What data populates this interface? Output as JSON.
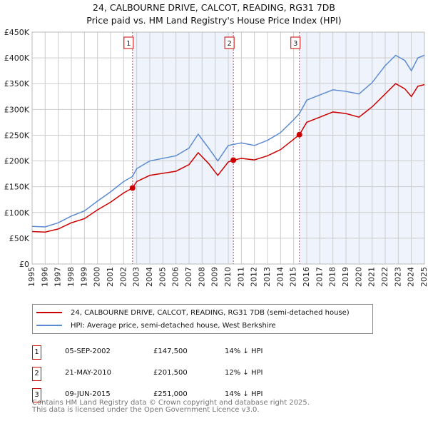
{
  "title": "24, CALBOURNE DRIVE, CALCOT, READING, RG31 7DB",
  "subtitle": "Price paid vs. HM Land Registry's House Price Index (HPI)",
  "chart_data": {
    "type": "line",
    "xlim": [
      1995,
      2025
    ],
    "ylim": [
      0,
      450000
    ],
    "yticks": [
      {
        "v": 0,
        "l": "£0"
      },
      {
        "v": 50000,
        "l": "£50K"
      },
      {
        "v": 100000,
        "l": "£100K"
      },
      {
        "v": 150000,
        "l": "£150K"
      },
      {
        "v": 200000,
        "l": "£200K"
      },
      {
        "v": 250000,
        "l": "£250K"
      },
      {
        "v": 300000,
        "l": "£300K"
      },
      {
        "v": 350000,
        "l": "£350K"
      },
      {
        "v": 400000,
        "l": "£400K"
      },
      {
        "v": 450000,
        "l": "£450K"
      }
    ],
    "xticks": [
      "1995",
      "1996",
      "1997",
      "1998",
      "1999",
      "2000",
      "2001",
      "2002",
      "2003",
      "2004",
      "2005",
      "2006",
      "2007",
      "2008",
      "2009",
      "2010",
      "2011",
      "2012",
      "2013",
      "2014",
      "2015",
      "2016",
      "2017",
      "2018",
      "2019",
      "2020",
      "2021",
      "2022",
      "2023",
      "2024",
      "2025"
    ],
    "series": [
      {
        "name": "24, CALBOURNE DRIVE, CALCOT, READING, RG31 7DB (semi-detached house)",
        "color": "#cc0000",
        "x": [
          1995,
          1996,
          1997,
          1998,
          1999,
          2000,
          2001,
          2002,
          2002.68,
          2003,
          2004,
          2005,
          2006,
          2007,
          2007.7,
          2008.5,
          2009.2,
          2010,
          2010.39,
          2011,
          2012,
          2013,
          2014,
          2015,
          2015.44,
          2016,
          2017,
          2018,
          2019,
          2020,
          2021,
          2022,
          2022.8,
          2023.5,
          2024,
          2024.5,
          2025
        ],
        "y": [
          63000,
          62000,
          68000,
          80000,
          88000,
          105000,
          120000,
          138000,
          147500,
          160000,
          172000,
          176000,
          180000,
          193000,
          216000,
          195000,
          172000,
          198000,
          201500,
          205000,
          202000,
          210000,
          222000,
          242000,
          251000,
          275000,
          285000,
          295000,
          292000,
          285000,
          305000,
          330000,
          350000,
          340000,
          325000,
          345000,
          348000
        ]
      },
      {
        "name": "HPI: Average price, semi-detached house, West Berkshire",
        "color": "#5b8bd0",
        "x": [
          1995,
          1996,
          1997,
          1998,
          1999,
          2000,
          2001,
          2002,
          2002.68,
          2003,
          2004,
          2005,
          2006,
          2007,
          2007.7,
          2008.5,
          2009.2,
          2010,
          2010.39,
          2011,
          2012,
          2013,
          2014,
          2015,
          2015.44,
          2016,
          2017,
          2018,
          2019,
          2020,
          2021,
          2022,
          2022.8,
          2023.5,
          2024,
          2024.5,
          2025
        ],
        "y": [
          73000,
          72000,
          80000,
          93000,
          103000,
          122000,
          140000,
          160000,
          170000,
          185000,
          200000,
          205000,
          210000,
          225000,
          252000,
          225000,
          200000,
          230000,
          232000,
          235000,
          230000,
          240000,
          255000,
          280000,
          292000,
          318000,
          328000,
          338000,
          335000,
          330000,
          352000,
          385000,
          405000,
          395000,
          375000,
          400000,
          405000
        ]
      }
    ],
    "sales": [
      {
        "label": "1",
        "x": 2002.68,
        "date": "05-SEP-2002",
        "price": 147500,
        "price_text": "£147,500",
        "hpi": "14% ↓ HPI"
      },
      {
        "label": "2",
        "x": 2010.39,
        "date": "21-MAY-2010",
        "price": 201500,
        "price_text": "£201,500",
        "hpi": "12% ↓ HPI"
      },
      {
        "label": "3",
        "x": 2015.44,
        "date": "09-JUN-2015",
        "price": 251000,
        "price_text": "£251,000",
        "hpi": "14% ↓ HPI"
      }
    ]
  },
  "legend": {
    "red": "24, CALBOURNE DRIVE, CALCOT, READING, RG31 7DB (semi-detached house)",
    "blue": "HPI: Average price, semi-detached house, West Berkshire"
  },
  "footer": [
    "Contains HM Land Registry data © Crown copyright and database right 2025.",
    "This data is licensed under the Open Government Licence v3.0."
  ]
}
